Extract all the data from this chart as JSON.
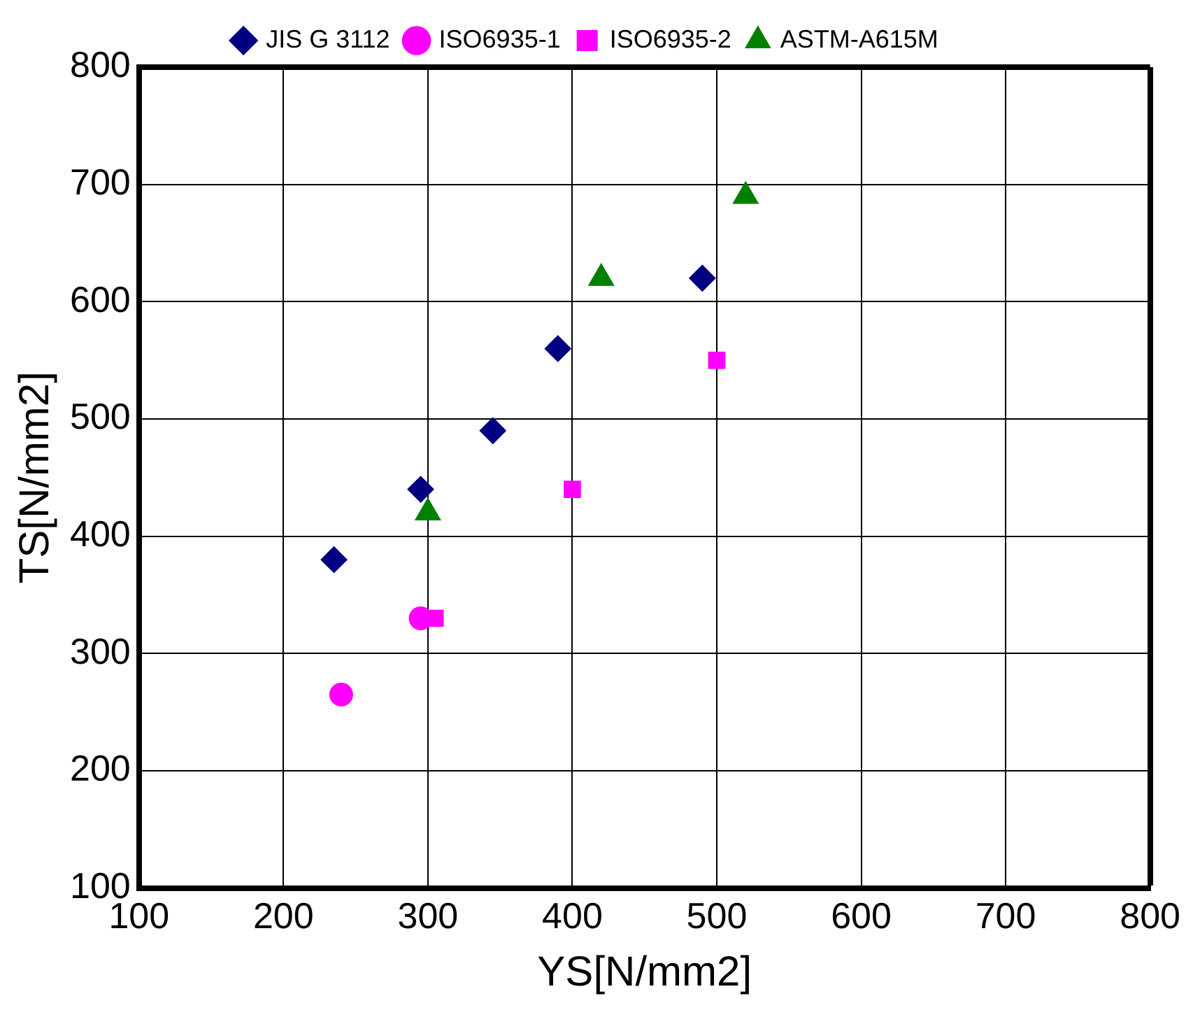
{
  "chart_data": {
    "type": "scatter",
    "xlabel": "YS[N/mm2]",
    "ylabel": "TS[N/mm2]",
    "series": [
      {
        "name": "JIS G 3112",
        "color": "#000080",
        "marker": "diamond",
        "x": [
          235,
          295,
          345,
          390,
          490
        ],
        "values": [
          380,
          440,
          490,
          560,
          620
        ]
      },
      {
        "name": "ISO6935-1",
        "color": "#ff00ff",
        "marker": "circle",
        "x": [
          240,
          295
        ],
        "values": [
          265,
          330
        ]
      },
      {
        "name": "ISO6935-2",
        "color": "#ff00ff",
        "marker": "square",
        "x": [
          305,
          400,
          500
        ],
        "values": [
          330,
          440,
          550
        ]
      },
      {
        "name": "ASTM-A615M",
        "color": "#008000",
        "marker": "triangle",
        "x": [
          300,
          420,
          520
        ],
        "values": [
          420,
          620,
          690
        ]
      }
    ],
    "xlim": [
      100,
      800
    ],
    "xticks": [
      100,
      200,
      300,
      400,
      500,
      600,
      700,
      800
    ],
    "ylim": [
      100,
      800
    ],
    "yticks": [
      100,
      200,
      300,
      400,
      500,
      600,
      700,
      800
    ],
    "grid": true,
    "legend": "top"
  }
}
